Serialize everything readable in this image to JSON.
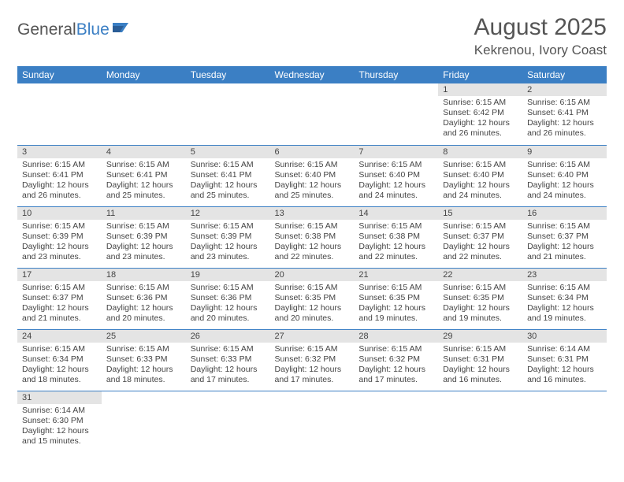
{
  "logo": {
    "text1": "General",
    "text2": "Blue"
  },
  "title": "August 2025",
  "location": "Kekrenou, Ivory Coast",
  "colors": {
    "header_bg": "#3b7fc4",
    "header_fg": "#ffffff",
    "daynum_bg": "#e4e4e4",
    "text": "#444444",
    "divider": "#3b7fc4",
    "page_bg": "#ffffff",
    "logo_blue": "#3b7fc4"
  },
  "weekdays": [
    "Sunday",
    "Monday",
    "Tuesday",
    "Wednesday",
    "Thursday",
    "Friday",
    "Saturday"
  ],
  "first_weekday_index": 5,
  "days": [
    {
      "n": 1,
      "sunrise": "6:15 AM",
      "sunset": "6:42 PM",
      "daylight": "12 hours and 26 minutes."
    },
    {
      "n": 2,
      "sunrise": "6:15 AM",
      "sunset": "6:41 PM",
      "daylight": "12 hours and 26 minutes."
    },
    {
      "n": 3,
      "sunrise": "6:15 AM",
      "sunset": "6:41 PM",
      "daylight": "12 hours and 26 minutes."
    },
    {
      "n": 4,
      "sunrise": "6:15 AM",
      "sunset": "6:41 PM",
      "daylight": "12 hours and 25 minutes."
    },
    {
      "n": 5,
      "sunrise": "6:15 AM",
      "sunset": "6:41 PM",
      "daylight": "12 hours and 25 minutes."
    },
    {
      "n": 6,
      "sunrise": "6:15 AM",
      "sunset": "6:40 PM",
      "daylight": "12 hours and 25 minutes."
    },
    {
      "n": 7,
      "sunrise": "6:15 AM",
      "sunset": "6:40 PM",
      "daylight": "12 hours and 24 minutes."
    },
    {
      "n": 8,
      "sunrise": "6:15 AM",
      "sunset": "6:40 PM",
      "daylight": "12 hours and 24 minutes."
    },
    {
      "n": 9,
      "sunrise": "6:15 AM",
      "sunset": "6:40 PM",
      "daylight": "12 hours and 24 minutes."
    },
    {
      "n": 10,
      "sunrise": "6:15 AM",
      "sunset": "6:39 PM",
      "daylight": "12 hours and 23 minutes."
    },
    {
      "n": 11,
      "sunrise": "6:15 AM",
      "sunset": "6:39 PM",
      "daylight": "12 hours and 23 minutes."
    },
    {
      "n": 12,
      "sunrise": "6:15 AM",
      "sunset": "6:39 PM",
      "daylight": "12 hours and 23 minutes."
    },
    {
      "n": 13,
      "sunrise": "6:15 AM",
      "sunset": "6:38 PM",
      "daylight": "12 hours and 22 minutes."
    },
    {
      "n": 14,
      "sunrise": "6:15 AM",
      "sunset": "6:38 PM",
      "daylight": "12 hours and 22 minutes."
    },
    {
      "n": 15,
      "sunrise": "6:15 AM",
      "sunset": "6:37 PM",
      "daylight": "12 hours and 22 minutes."
    },
    {
      "n": 16,
      "sunrise": "6:15 AM",
      "sunset": "6:37 PM",
      "daylight": "12 hours and 21 minutes."
    },
    {
      "n": 17,
      "sunrise": "6:15 AM",
      "sunset": "6:37 PM",
      "daylight": "12 hours and 21 minutes."
    },
    {
      "n": 18,
      "sunrise": "6:15 AM",
      "sunset": "6:36 PM",
      "daylight": "12 hours and 20 minutes."
    },
    {
      "n": 19,
      "sunrise": "6:15 AM",
      "sunset": "6:36 PM",
      "daylight": "12 hours and 20 minutes."
    },
    {
      "n": 20,
      "sunrise": "6:15 AM",
      "sunset": "6:35 PM",
      "daylight": "12 hours and 20 minutes."
    },
    {
      "n": 21,
      "sunrise": "6:15 AM",
      "sunset": "6:35 PM",
      "daylight": "12 hours and 19 minutes."
    },
    {
      "n": 22,
      "sunrise": "6:15 AM",
      "sunset": "6:35 PM",
      "daylight": "12 hours and 19 minutes."
    },
    {
      "n": 23,
      "sunrise": "6:15 AM",
      "sunset": "6:34 PM",
      "daylight": "12 hours and 19 minutes."
    },
    {
      "n": 24,
      "sunrise": "6:15 AM",
      "sunset": "6:34 PM",
      "daylight": "12 hours and 18 minutes."
    },
    {
      "n": 25,
      "sunrise": "6:15 AM",
      "sunset": "6:33 PM",
      "daylight": "12 hours and 18 minutes."
    },
    {
      "n": 26,
      "sunrise": "6:15 AM",
      "sunset": "6:33 PM",
      "daylight": "12 hours and 17 minutes."
    },
    {
      "n": 27,
      "sunrise": "6:15 AM",
      "sunset": "6:32 PM",
      "daylight": "12 hours and 17 minutes."
    },
    {
      "n": 28,
      "sunrise": "6:15 AM",
      "sunset": "6:32 PM",
      "daylight": "12 hours and 17 minutes."
    },
    {
      "n": 29,
      "sunrise": "6:15 AM",
      "sunset": "6:31 PM",
      "daylight": "12 hours and 16 minutes."
    },
    {
      "n": 30,
      "sunrise": "6:14 AM",
      "sunset": "6:31 PM",
      "daylight": "12 hours and 16 minutes."
    },
    {
      "n": 31,
      "sunrise": "6:14 AM",
      "sunset": "6:30 PM",
      "daylight": "12 hours and 15 minutes."
    }
  ],
  "labels": {
    "sunrise": "Sunrise:",
    "sunset": "Sunset:",
    "daylight": "Daylight:"
  }
}
